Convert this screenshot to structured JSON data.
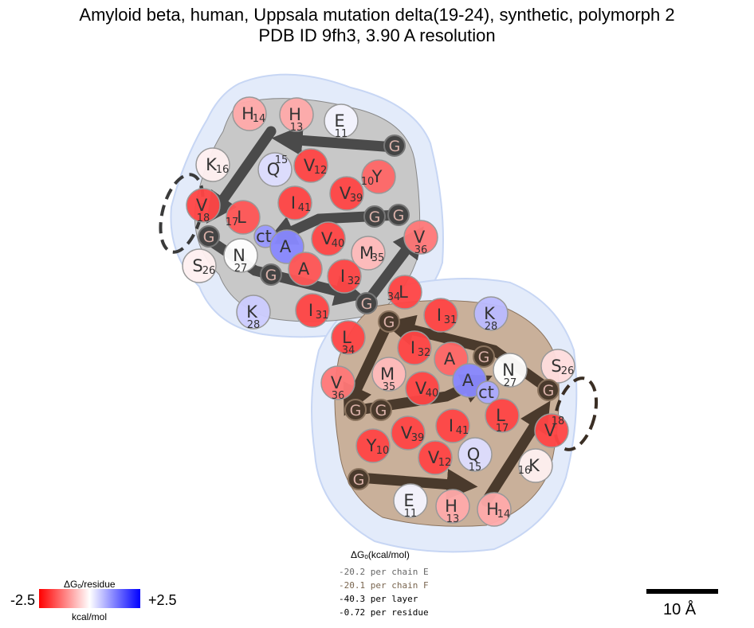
{
  "title": {
    "line1": "Amyloid beta, human, Uppsala mutation delta(19-24), synthetic, polymorph 2",
    "line2": "PDB ID 9fh3, 3.90 A resolution"
  },
  "colors": {
    "chainE_fill": "#c8c8c8",
    "chainF_fill": "#c9b09a",
    "halo": "#e3ebfa",
    "arrowE": "#4a4a4a",
    "arrowF": "#4a3a2c"
  },
  "chainE": {
    "residues": [
      {
        "letter": "H",
        "num": "14",
        "color": "#ffaaaa",
        "num_pos": "right"
      },
      {
        "letter": "H",
        "num": "13",
        "color": "#ffaaaa",
        "num_pos": "below"
      },
      {
        "letter": "E",
        "num": "11",
        "color": "#f4f4ff",
        "num_pos": "below"
      },
      {
        "letter": "G",
        "num": "",
        "color": "#444",
        "glycine": true
      },
      {
        "letter": "K",
        "num": "16",
        "color": "#fff0f0",
        "num_pos": "right"
      },
      {
        "letter": "Q",
        "num": "15",
        "color": "#ddddff",
        "num_pos": "above"
      },
      {
        "letter": "V",
        "num": "12",
        "color": "#ff4444",
        "num_pos": "right"
      },
      {
        "letter": "Y",
        "num": "10",
        "color": "#ff6666",
        "num_pos": "left"
      },
      {
        "letter": "V",
        "num": "18",
        "color": "#ff4444",
        "num_pos": "below"
      },
      {
        "letter": "L",
        "num": "17",
        "color": "#ff5555",
        "num_pos": "left"
      },
      {
        "letter": "I",
        "num": "41",
        "color": "#ff4444",
        "num_pos": "right"
      },
      {
        "letter": "V",
        "num": "39",
        "color": "#ff4444",
        "num_pos": "right"
      },
      {
        "letter": "G",
        "num": "",
        "color": "#444",
        "glycine": true
      },
      {
        "letter": "G",
        "num": "",
        "color": "#444",
        "glycine": true
      },
      {
        "letter": "G",
        "num": "",
        "color": "#444",
        "glycine": true
      },
      {
        "letter": "ct",
        "num": "",
        "color": "#9999ff"
      },
      {
        "letter": "A",
        "num": "",
        "color": "#8888ff"
      },
      {
        "letter": "V",
        "num": "40",
        "color": "#ff4444",
        "num_pos": "right"
      },
      {
        "letter": "M",
        "num": "35",
        "color": "#ffbbbb",
        "num_pos": "right"
      },
      {
        "letter": "V",
        "num": "36",
        "color": "#ff7777",
        "num_pos": "below"
      },
      {
        "letter": "S",
        "num": "26",
        "color": "#fff0f0",
        "num_pos": "right"
      },
      {
        "letter": "N",
        "num": "27",
        "color": "#ffffff",
        "num_pos": "below"
      },
      {
        "letter": "G",
        "num": "",
        "color": "#444",
        "glycine": true
      },
      {
        "letter": "A",
        "num": "",
        "color": "#ff5555"
      },
      {
        "letter": "I",
        "num": "32",
        "color": "#ff4444",
        "num_pos": "right"
      },
      {
        "letter": "L",
        "num": "34",
        "color": "#ff4444",
        "num_pos": "left"
      },
      {
        "letter": "K",
        "num": "28",
        "color": "#ccccff",
        "num_pos": "below"
      },
      {
        "letter": "I",
        "num": "31",
        "color": "#ff4444",
        "num_pos": "right"
      },
      {
        "letter": "G",
        "num": "",
        "color": "#444",
        "glycine": true
      }
    ]
  },
  "chainF": {
    "residues": [
      {
        "letter": "G",
        "num": "",
        "color": "#4a3a2c",
        "glycine": true
      },
      {
        "letter": "I",
        "num": "31",
        "color": "#ff4444",
        "num_pos": "right"
      },
      {
        "letter": "K",
        "num": "28",
        "color": "#bbbbff",
        "num_pos": "below"
      },
      {
        "letter": "L",
        "num": "34",
        "color": "#ff4444",
        "num_pos": "below"
      },
      {
        "letter": "I",
        "num": "32",
        "color": "#ff4444",
        "num_pos": "right"
      },
      {
        "letter": "A",
        "num": "",
        "color": "#ff6666"
      },
      {
        "letter": "G",
        "num": "",
        "color": "#4a3a2c",
        "glycine": true
      },
      {
        "letter": "N",
        "num": "27",
        "color": "#ffffff",
        "num_pos": "below"
      },
      {
        "letter": "S",
        "num": "26",
        "color": "#ffdddd",
        "num_pos": "right"
      },
      {
        "letter": "V",
        "num": "36",
        "color": "#ff7777",
        "num_pos": "below"
      },
      {
        "letter": "M",
        "num": "35",
        "color": "#ffbbbb",
        "num_pos": "below"
      },
      {
        "letter": "V",
        "num": "40",
        "color": "#ff4444",
        "num_pos": "right"
      },
      {
        "letter": "A",
        "num": "",
        "color": "#8888ff"
      },
      {
        "letter": "ct",
        "num": "",
        "color": "#aaaaff"
      },
      {
        "letter": "G",
        "num": "",
        "color": "#4a3a2c",
        "glycine": true
      },
      {
        "letter": "G",
        "num": "",
        "color": "#4a3a2c",
        "glycine": true
      },
      {
        "letter": "G",
        "num": "",
        "color": "#4a3a2c",
        "glycine": true
      },
      {
        "letter": "L",
        "num": "17",
        "color": "#ff4444",
        "num_pos": "below"
      },
      {
        "letter": "V",
        "num": "18",
        "color": "#ff4444",
        "num_pos": "above"
      },
      {
        "letter": "Y",
        "num": "10",
        "color": "#ff4444",
        "num_pos": "right"
      },
      {
        "letter": "V",
        "num": "39",
        "color": "#ff4444",
        "num_pos": "right"
      },
      {
        "letter": "I",
        "num": "41",
        "color": "#ff4444",
        "num_pos": "right"
      },
      {
        "letter": "Q",
        "num": "15",
        "color": "#ddddff",
        "num_pos": "below"
      },
      {
        "letter": "V",
        "num": "12",
        "color": "#ff4444",
        "num_pos": "right"
      },
      {
        "letter": "K",
        "num": "16",
        "color": "#fff0f0",
        "num_pos": "left"
      },
      {
        "letter": "G",
        "num": "",
        "color": "#4a3a2c",
        "glycine": true
      },
      {
        "letter": "E",
        "num": "11",
        "color": "#f4f4ff",
        "num_pos": "below"
      },
      {
        "letter": "H",
        "num": "13",
        "color": "#ffaaaa",
        "num_pos": "below"
      },
      {
        "letter": "H",
        "num": "14",
        "color": "#ffaaaa",
        "num_pos": "right"
      }
    ]
  },
  "energy": {
    "header": "ΔGₒ(kcal/mol)",
    "lines": [
      {
        "text": "-20.2 per chain E",
        "color": "#666666"
      },
      {
        "text": "-20.1 per chain F",
        "color": "#7a6650"
      },
      {
        "text": "-40.3 per layer",
        "color": "#000000"
      },
      {
        "text": "-0.72 per residue",
        "color": "#000000"
      }
    ]
  },
  "colorbar": {
    "title": "ΔGₒ/residue",
    "min_label": "-2.5",
    "max_label": "+2.5",
    "unit": "kcal/mol",
    "min_color": "#ff0000",
    "mid_color": "#ffffff",
    "max_color": "#0000ff"
  },
  "scalebar": {
    "label": "10 Å"
  }
}
